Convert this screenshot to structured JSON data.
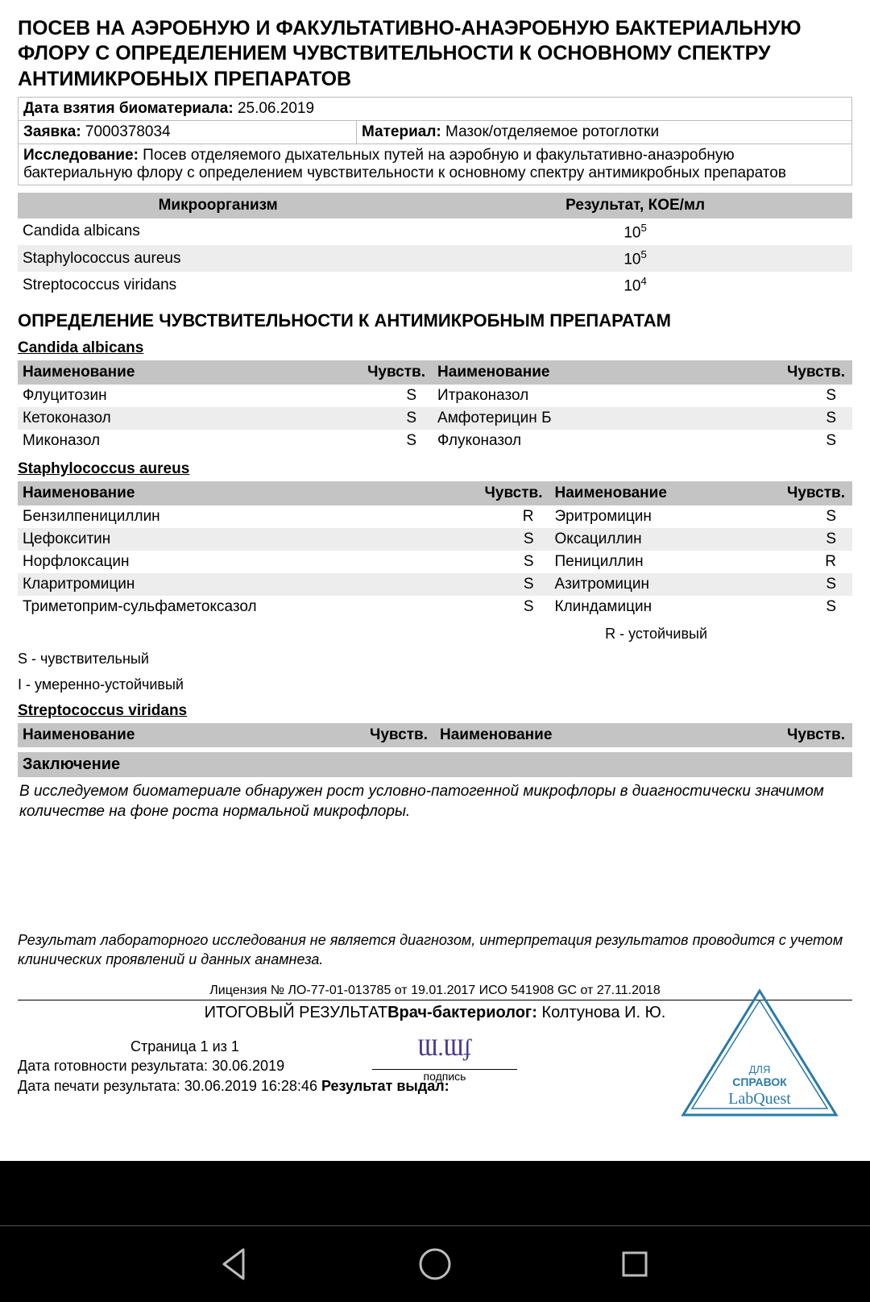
{
  "title": "ПОСЕВ НА АЭРОБНУЮ И ФАКУЛЬТАТИВНО-АНАЭРОБНУЮ БАКТЕРИАЛЬНУЮ ФЛОРУ С ОПРЕДЕЛЕНИЕМ ЧУВСТВИТЕЛЬНОСТИ К ОСНОВНОМУ СПЕКТРУ АНТИМИКРОБНЫХ ПРЕПАРАТОВ",
  "sample_date_label": "Дата взятия биоматериала:",
  "sample_date": "25.06.2019",
  "request_label": "Заявка:",
  "request": "7000378034",
  "material_label": "Материал:",
  "material": "Мазок/отделяемое ротоглотки",
  "study_label": "Исследование:",
  "study": "Посев отделяемого дыхательных путей на аэробную и факультативно-анаэробную бактериальную флору с определением чувствительности к основному спектру антимикробных препаратов",
  "results_header": {
    "col1": "Микроорганизм",
    "col2": "Результат, КОЕ/мл"
  },
  "results": [
    {
      "name": "Candida albicans",
      "base": "10",
      "exp": "5"
    },
    {
      "name": "Staphylococcus aureus",
      "base": "10",
      "exp": "5"
    },
    {
      "name": "Streptococcus viridans",
      "base": "10",
      "exp": "4"
    }
  ],
  "sens_title": "ОПРЕДЕЛЕНИЕ ЧУВСТВИТЕЛЬНОСТИ К АНТИМИКРОБНЫМ ПРЕПАРАТАМ",
  "sens_headers": {
    "name": "Наименование",
    "sens": "Чувств."
  },
  "organisms": [
    {
      "name": "Candida albicans",
      "rows": [
        {
          "l_name": "Флуцитозин",
          "l_sens": "S",
          "r_name": "Итраконазол",
          "r_sens": "S"
        },
        {
          "l_name": "Кетоконазол",
          "l_sens": "S",
          "r_name": "Амфотерицин Б",
          "r_sens": "S"
        },
        {
          "l_name": "Миконазол",
          "l_sens": "S",
          "r_name": "Флуконазол",
          "r_sens": "S"
        }
      ]
    },
    {
      "name": "Staphylococcus aureus",
      "rows": [
        {
          "l_name": "Бензилпенициллин",
          "l_sens": "R",
          "r_name": "Эритромицин",
          "r_sens": "S"
        },
        {
          "l_name": "Цефокситин",
          "l_sens": "S",
          "r_name": "Оксациллин",
          "r_sens": "S"
        },
        {
          "l_name": "Норфлоксацин",
          "l_sens": "S",
          "r_name": "Пенициллин",
          "r_sens": "R"
        },
        {
          "l_name": "Кларитромицин",
          "l_sens": "S",
          "r_name": "Азитромицин",
          "r_sens": "S"
        },
        {
          "l_name": "Триметоприм-сульфаметоксазол",
          "l_sens": "S",
          "r_name": "Клиндамицин",
          "r_sens": "S"
        }
      ]
    },
    {
      "name": "Streptococcus viridans",
      "rows": []
    }
  ],
  "legend_r": "R - устойчивый",
  "legend_s": "S - чувствительный",
  "legend_i": "I - умеренно-устойчивый",
  "conclusion_label": "Заключение",
  "conclusion_text": "В исследуемом биоматериале обнаружен рост условно-патогенной микрофлоры в диагностически значимом количестве на фоне роста нормальной микрофлоры.",
  "disclaimer": "Результат лабораторного исследования не является диагнозом, интерпретация результатов проводится с учетом клинических проявлений и данных анамнеза.",
  "license": "Лицензия № ЛО-77-01-013785 от 19.01.2017 ИСО 541908 GC от 27.11.2018",
  "final_label": "ИТОГОВЫЙ РЕЗУЛЬТАТ",
  "doctor_label": "Врач-бактериолог:",
  "doctor_name": "Колтунова И. Ю.",
  "page_label": "Страница 1 из 1",
  "ready_label": "Дата готовности результата:",
  "ready_date": "30.06.2019",
  "print_label": "Дата печати результата:",
  "print_date": "30.06.2019 16:28:46",
  "issued_label": "Результат выдал:",
  "sig_sub": "подпись",
  "stamp": {
    "top": "ДЛЯ",
    "mid": "СПРАВОК",
    "brand": "LabQuest",
    "color": "#2a7aa8"
  }
}
